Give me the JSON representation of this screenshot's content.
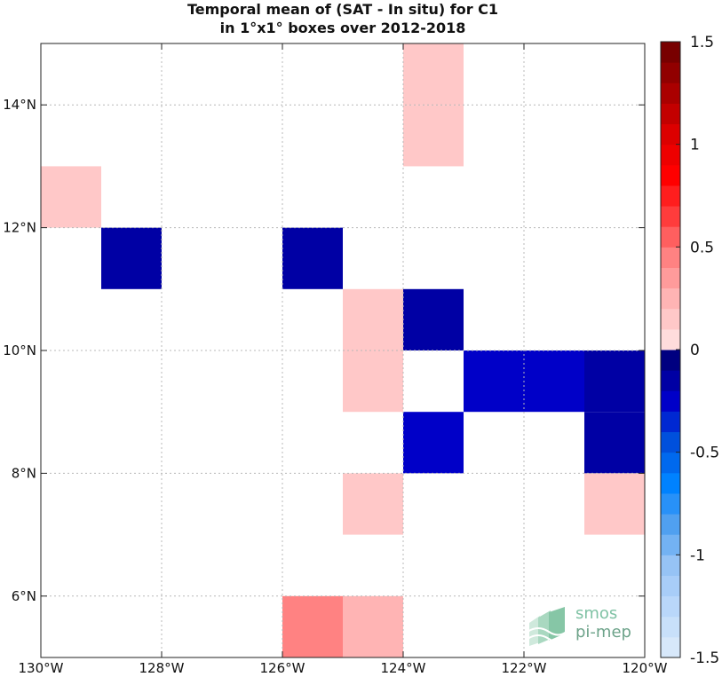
{
  "title": {
    "line1": "Temporal mean of (SAT - In situ) for C1",
    "line2": "in 1°x1° boxes over 2012-2018"
  },
  "logo": {
    "line1": "smos",
    "line2": "pi-mep"
  },
  "chart_data": {
    "type": "heatmap",
    "title": "Temporal mean of (SAT - In situ) for C1 in 1°x1° boxes over 2012-2018",
    "xlabel": "",
    "ylabel": "",
    "xlim": [
      -130,
      -120
    ],
    "ylim": [
      5,
      15
    ],
    "grid": true,
    "x_ticks": [
      -130,
      -128,
      -126,
      -124,
      -122,
      -120
    ],
    "x_tick_labels": [
      "130°W",
      "128°W",
      "126°W",
      "124°W",
      "122°W",
      "120°W"
    ],
    "y_ticks": [
      6,
      8,
      10,
      12,
      14
    ],
    "y_tick_labels": [
      "6°N",
      "8°N",
      "10°N",
      "12°N",
      "14°N"
    ],
    "colorbar": {
      "range": [
        -1.5,
        1.5
      ],
      "ticks": [
        1.5,
        1,
        0.5,
        0,
        -0.5,
        -1,
        -1.5
      ],
      "tick_labels": [
        "1.5",
        "1",
        "0.5",
        "0",
        "-0.5",
        "-1",
        "-1.5"
      ],
      "n_levels": 30,
      "colormap": "blue-white-red"
    },
    "cells": [
      {
        "lon": -130,
        "lat": 12,
        "value": 0.1
      },
      {
        "lon": -129,
        "lat": 11,
        "value": -0.1
      },
      {
        "lon": -126,
        "lat": 11,
        "value": -0.1
      },
      {
        "lon": -124,
        "lat": 13,
        "value": 0.1
      },
      {
        "lon": -124,
        "lat": 14,
        "value": 0.1
      },
      {
        "lon": -125,
        "lat": 10,
        "value": 0.1
      },
      {
        "lon": -125,
        "lat": 9,
        "value": 0.1
      },
      {
        "lon": -124,
        "lat": 10,
        "value": -0.1
      },
      {
        "lon": -124,
        "lat": 8,
        "value": -0.25
      },
      {
        "lon": -123,
        "lat": 9,
        "value": -0.25
      },
      {
        "lon": -122,
        "lat": 9,
        "value": -0.25
      },
      {
        "lon": -121,
        "lat": 9,
        "value": -0.15
      },
      {
        "lon": -121,
        "lat": 8,
        "value": -0.1
      },
      {
        "lon": -125,
        "lat": 7,
        "value": 0.1
      },
      {
        "lon": -121,
        "lat": 7,
        "value": 0.1
      },
      {
        "lon": -126,
        "lat": 5,
        "value": 0.4
      },
      {
        "lon": -125,
        "lat": 5,
        "value": 0.25
      }
    ]
  }
}
